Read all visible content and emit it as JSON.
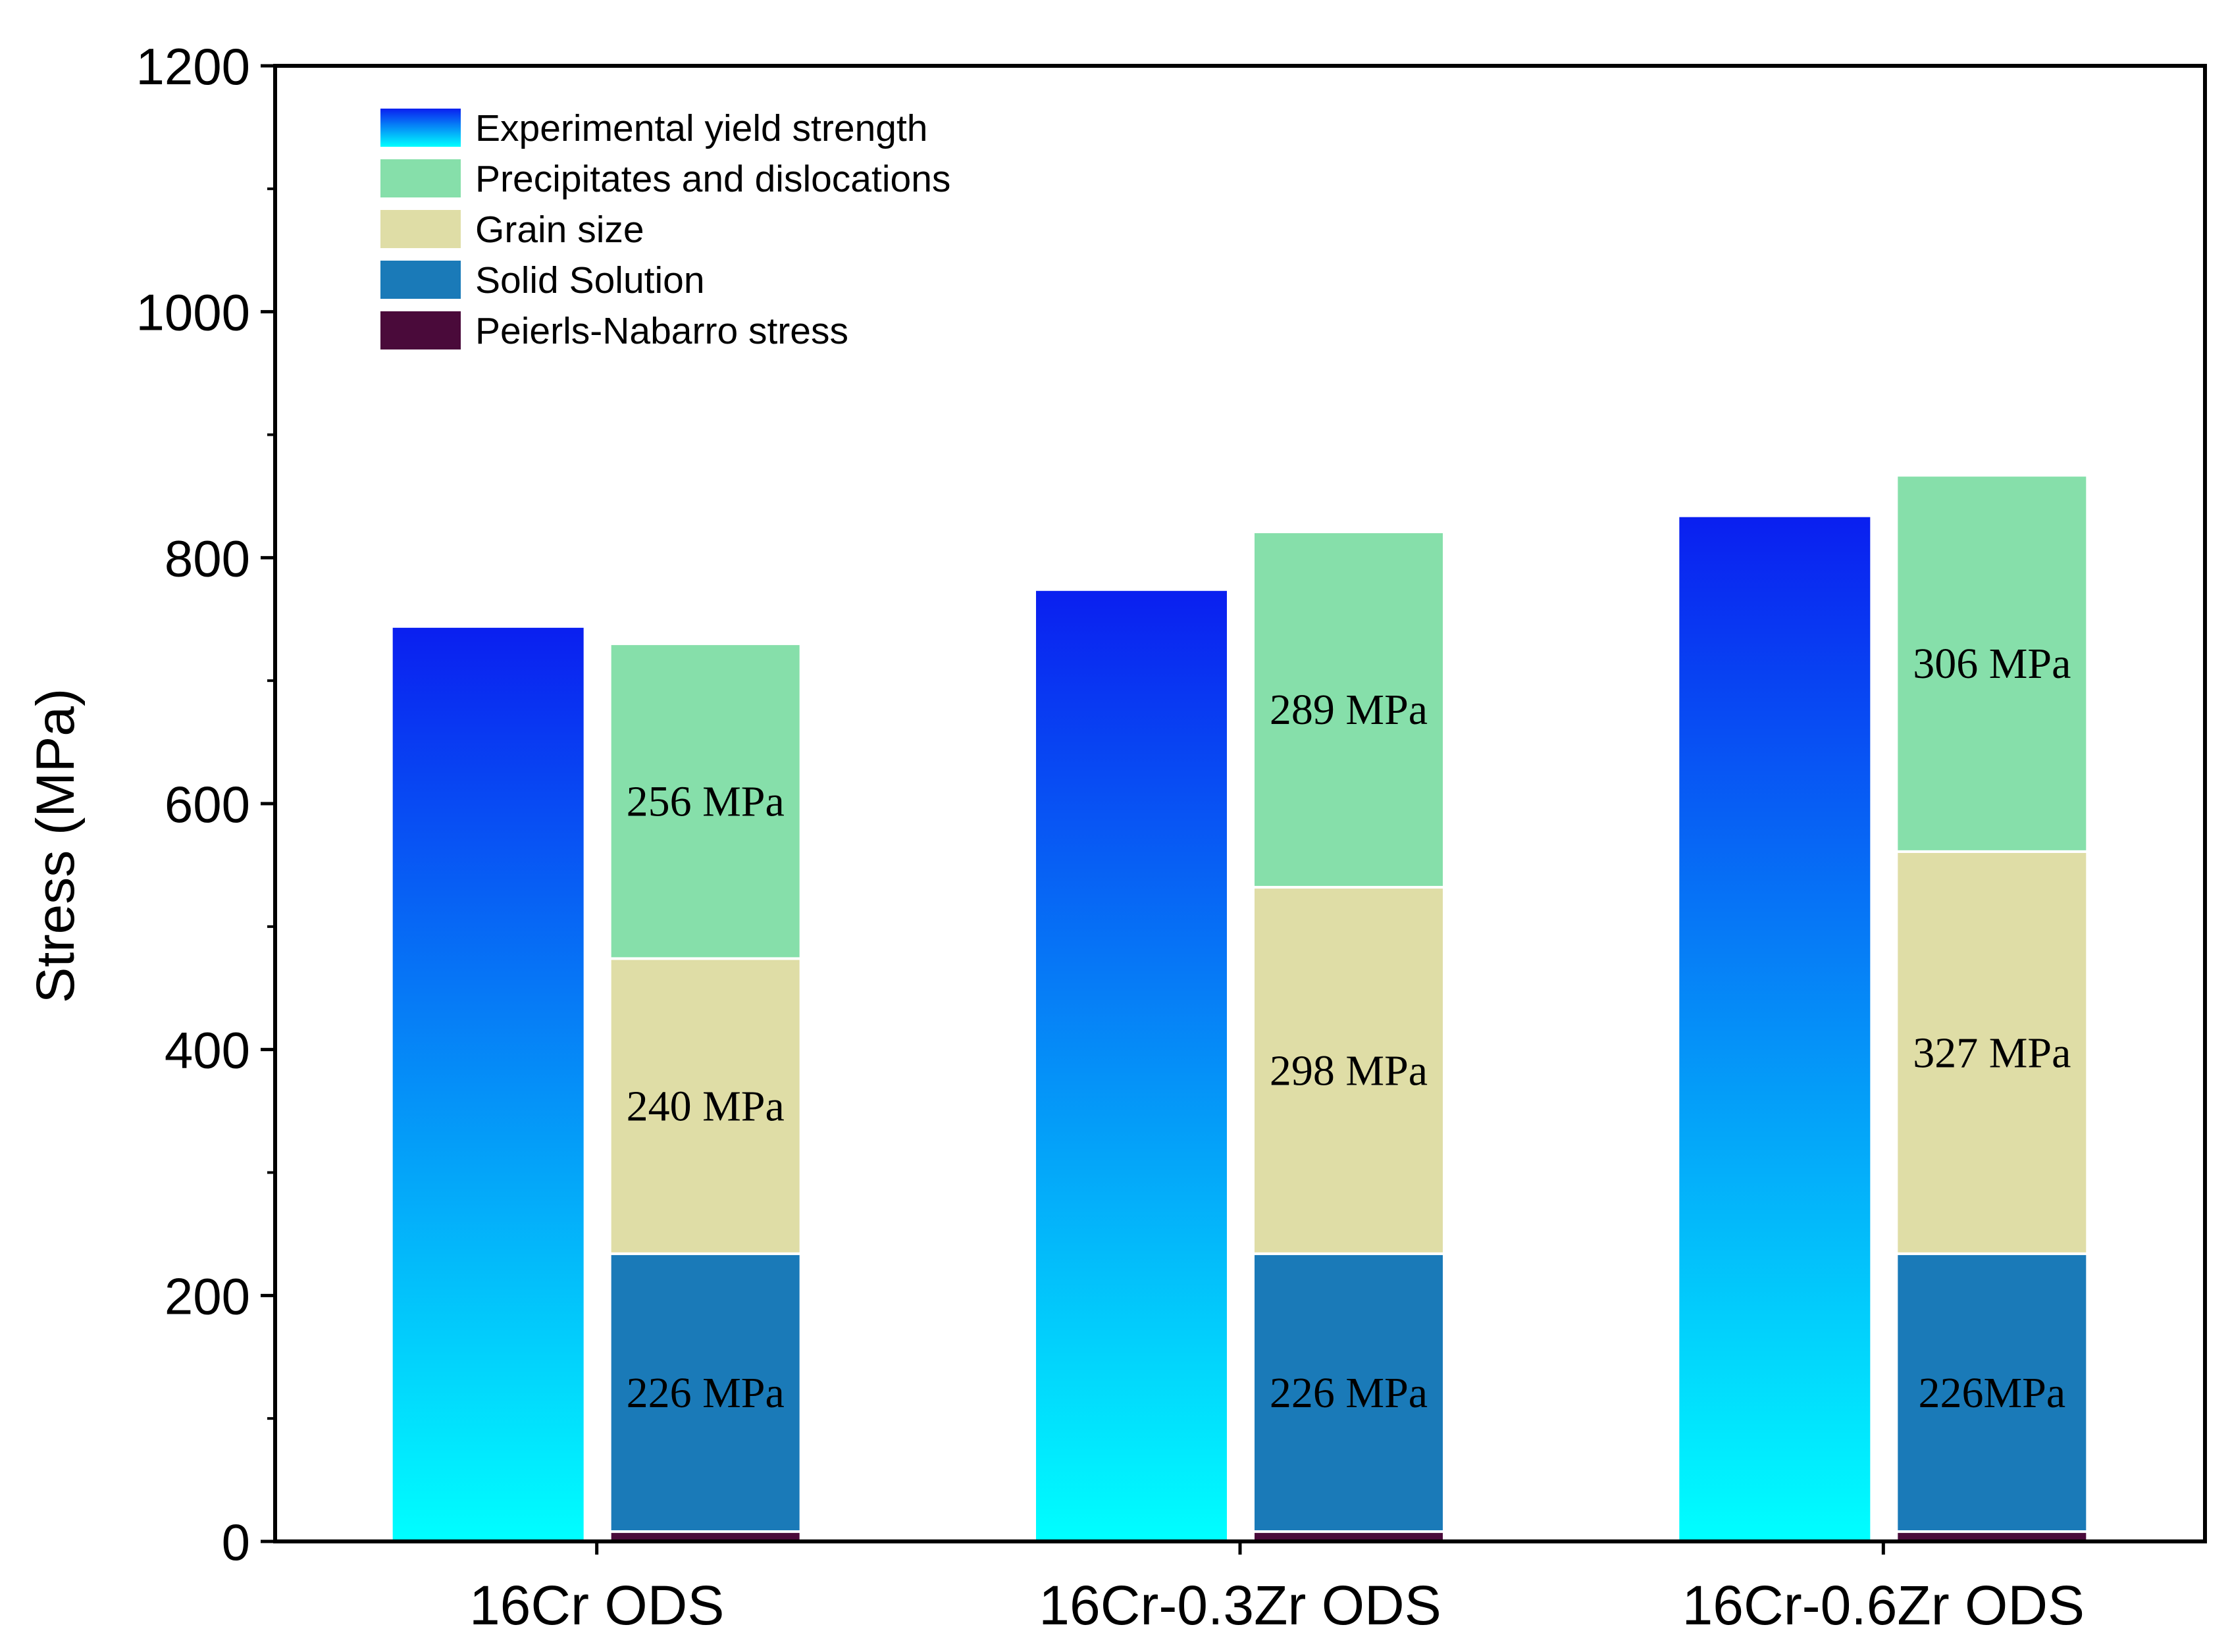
{
  "chart_data": {
    "type": "bar",
    "subtype": "grouped-stacked",
    "ylabel": "Stress (MPa)",
    "xlabel": "",
    "ylim": [
      0,
      1200
    ],
    "yticks": [
      0,
      200,
      400,
      600,
      800,
      1000,
      1200
    ],
    "grid": false,
    "legend_position": "top-left",
    "categories": [
      "16Cr ODS",
      "16Cr-0.3Zr ODS",
      "16Cr-0.6Zr ODS"
    ],
    "series": [
      {
        "name": "Experimental yield strength",
        "stack": "experimental",
        "color_top": "#0a1ff0",
        "color_bottom": "#00ffff",
        "values": [
          743,
          773,
          833
        ]
      },
      {
        "name": "Peierls-Nabarro stress",
        "stack": "calculated",
        "color": "#4a0a3a",
        "values": [
          8,
          8,
          8
        ]
      },
      {
        "name": "Solid Solution",
        "stack": "calculated",
        "color": "#1a7ab8",
        "values": [
          226,
          226,
          226
        ]
      },
      {
        "name": "Grain size",
        "stack": "calculated",
        "color": "#dfdda6",
        "values": [
          240,
          298,
          327
        ]
      },
      {
        "name": "Precipitates and dislocations",
        "stack": "calculated",
        "color": "#86dfaa",
        "values": [
          256,
          289,
          306
        ]
      }
    ],
    "legend_order": [
      "Experimental yield strength",
      "Precipitates and dislocations",
      "Grain size",
      "Solid Solution",
      "Peierls-Nabarro stress"
    ],
    "data_labels": [
      {
        "category": 0,
        "series": "Solid Solution",
        "text": "226 MPa"
      },
      {
        "category": 0,
        "series": "Grain size",
        "text": "240 MPa"
      },
      {
        "category": 0,
        "series": "Precipitates and dislocations",
        "text": "256 MPa"
      },
      {
        "category": 1,
        "series": "Solid Solution",
        "text": "226 MPa"
      },
      {
        "category": 1,
        "series": "Grain size",
        "text": "298 MPa"
      },
      {
        "category": 1,
        "series": "Precipitates and dislocations",
        "text": "289 MPa"
      },
      {
        "category": 2,
        "series": "Solid Solution",
        "text": "226MPa"
      },
      {
        "category": 2,
        "series": "Grain size",
        "text": "327 MPa"
      },
      {
        "category": 2,
        "series": "Precipitates and dislocations",
        "text": "306 MPa"
      }
    ]
  }
}
